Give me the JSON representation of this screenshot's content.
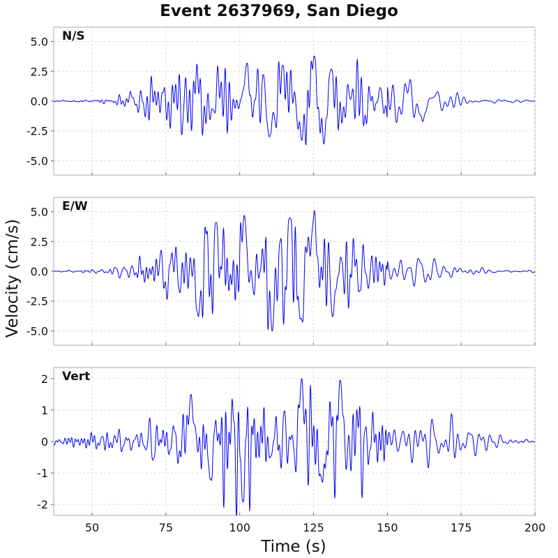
{
  "chart_data": {
    "type": "line",
    "title": "Event 2637969, San Diego",
    "xlabel": "Time (s)",
    "ylabel": "Velocity (cm/s)",
    "xlim": [
      37,
      200
    ],
    "x_ticks": [
      50,
      75,
      100,
      125,
      150,
      175,
      200
    ],
    "x_tick_labels": [
      "50",
      "75",
      "100",
      "125",
      "150",
      "175",
      "200"
    ],
    "grid": true,
    "line_color": "#0000ee",
    "panels": [
      {
        "name": "N/S",
        "ylim": [
          -6.2,
          6.2
        ],
        "y_ticks": [
          5.0,
          2.5,
          0.0,
          -2.5,
          -5.0
        ],
        "y_tick_labels": [
          "5.0",
          "2.5",
          "0.0",
          "-2.5",
          "-5.0"
        ],
        "envelope": {
          "t": [
            37,
            48,
            58,
            65,
            72,
            80,
            88,
            96,
            102,
            108,
            114,
            120,
            125,
            129,
            135,
            142,
            150,
            158,
            166,
            174,
            182,
            190,
            200
          ],
          "a": [
            0.03,
            0.08,
            0.25,
            0.7,
            1.3,
            2.0,
            2.4,
            2.6,
            2.9,
            2.6,
            2.9,
            3.0,
            3.5,
            3.3,
            2.4,
            1.9,
            1.5,
            1.4,
            0.9,
            0.55,
            0.3,
            0.15,
            0.08
          ]
        },
        "peaks": [
          {
            "t": 102.5,
            "v": 3.2
          },
          {
            "t": 110,
            "v": -3.0
          },
          {
            "t": 114.5,
            "v": 3.0
          },
          {
            "t": 121,
            "v": -3.3
          },
          {
            "t": 125.2,
            "v": 3.8
          },
          {
            "t": 128.5,
            "v": -3.6
          },
          {
            "t": 131,
            "v": 2.7
          },
          {
            "t": 162,
            "v": -1.7
          }
        ]
      },
      {
        "name": "E/W",
        "ylim": [
          -6.2,
          6.2
        ],
        "y_ticks": [
          5.0,
          2.5,
          0.0,
          -2.5,
          -5.0
        ],
        "y_tick_labels": [
          "5.0",
          "2.5",
          "0.0",
          "-2.5",
          "-5.0"
        ],
        "envelope": {
          "t": [
            37,
            48,
            58,
            65,
            72,
            80,
            88,
            96,
            102,
            108,
            114,
            120,
            125,
            129,
            135,
            142,
            150,
            158,
            166,
            174,
            182,
            190,
            200
          ],
          "a": [
            0.03,
            0.1,
            0.35,
            0.8,
            1.5,
            2.6,
            3.3,
            3.6,
            3.8,
            3.8,
            3.9,
            4.0,
            4.2,
            3.6,
            3.0,
            2.2,
            1.6,
            1.0,
            0.7,
            0.45,
            0.3,
            0.15,
            0.08
          ]
        },
        "peaks": [
          {
            "t": 86,
            "v": -3.8
          },
          {
            "t": 92,
            "v": 4.1
          },
          {
            "t": 101.5,
            "v": 4.7
          },
          {
            "t": 111,
            "v": -5.0
          },
          {
            "t": 117,
            "v": 4.5
          },
          {
            "t": 120.5,
            "v": -4.0
          },
          {
            "t": 125.3,
            "v": 5.1
          },
          {
            "t": 131.5,
            "v": -3.8
          }
        ]
      },
      {
        "name": "Vert",
        "ylim": [
          -2.35,
          2.35
        ],
        "y_ticks": [
          2,
          1,
          0,
          -1,
          -2
        ],
        "y_tick_labels": [
          "2",
          "1",
          "0",
          "-1",
          "-2"
        ],
        "envelope": {
          "t": [
            37,
            45,
            55,
            62,
            70,
            78,
            84,
            90,
            96,
            101,
            106,
            114,
            121,
            127,
            134,
            140,
            146,
            152,
            160,
            168,
            174,
            182,
            190,
            200
          ],
          "a": [
            0.1,
            0.15,
            0.3,
            0.45,
            0.45,
            0.7,
            1.2,
            1.2,
            1.2,
            1.5,
            1.2,
            1.3,
            1.7,
            1.4,
            1.6,
            1.3,
            1.0,
            0.95,
            0.85,
            0.7,
            0.4,
            0.2,
            0.12,
            0.05
          ]
        },
        "peaks": [
          {
            "t": 83.5,
            "v": 1.5
          },
          {
            "t": 90,
            "v": -1.2
          },
          {
            "t": 101,
            "v": -1.9
          },
          {
            "t": 121,
            "v": 2.0
          },
          {
            "t": 128,
            "v": -1.3
          },
          {
            "t": 134,
            "v": 1.95
          }
        ]
      }
    ]
  }
}
